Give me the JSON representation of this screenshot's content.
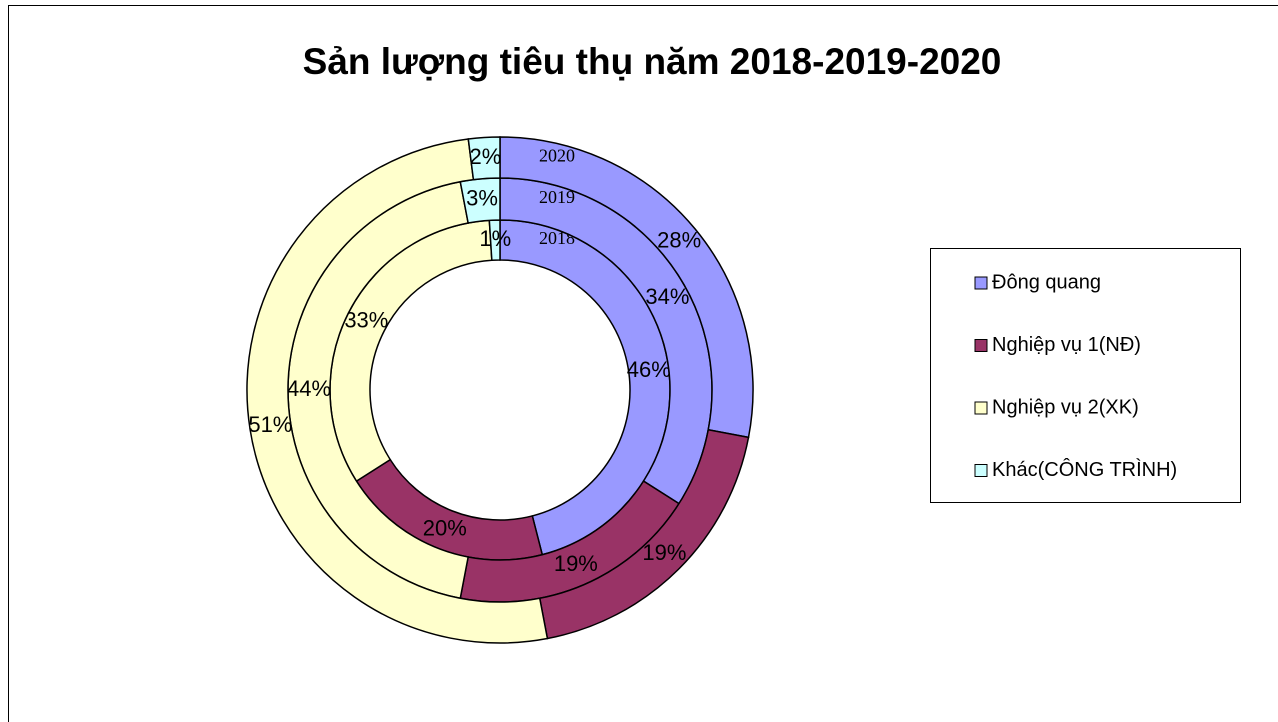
{
  "chart_data": {
    "type": "doughnut",
    "title": "Sản lượng tiêu thụ năm 2018-2019-2020",
    "categories": [
      "Đông quang",
      "Nghiệp vụ 1(NĐ)",
      "Nghiệp vụ 2(XK)",
      "Khác(CÔNG TRÌNH)"
    ],
    "colors": [
      "#9999ff",
      "#993366",
      "#ffffcc",
      "#ccffff"
    ],
    "series": [
      {
        "name": "2018",
        "values": [
          46,
          20,
          33,
          1
        ],
        "value_labels": [
          "46%",
          "20%",
          "33%",
          "1%"
        ]
      },
      {
        "name": "2019",
        "values": [
          34,
          19,
          44,
          3
        ],
        "value_labels": [
          "34%",
          "19%",
          "44%",
          "3%"
        ]
      },
      {
        "name": "2020",
        "values": [
          28,
          19,
          51,
          2
        ],
        "value_labels": [
          "28%",
          "19%",
          "51%",
          "2%"
        ]
      }
    ],
    "legend": "right"
  }
}
